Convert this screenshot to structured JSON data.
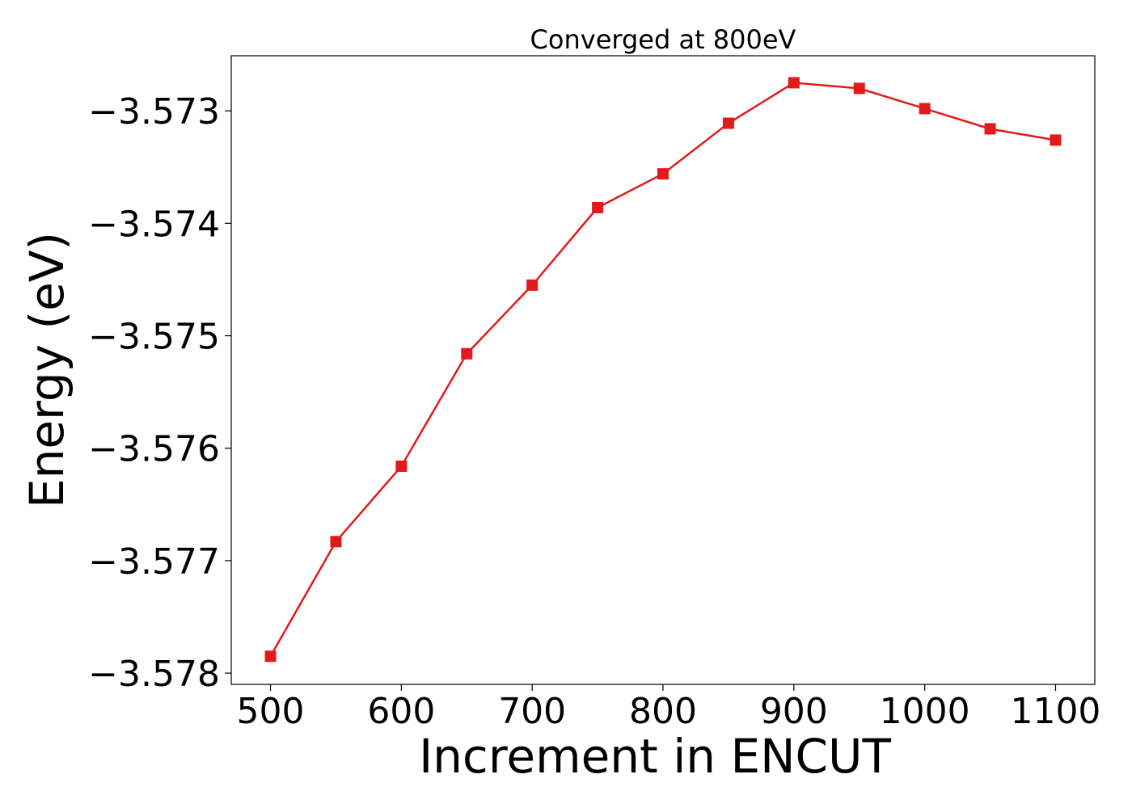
{
  "chart_data": {
    "type": "line",
    "title": "Converged at 800eV",
    "xlabel": "Increment in ENCUT",
    "ylabel": "Energy (eV)",
    "xlim": [
      470,
      1130
    ],
    "ylim": [
      -3.5781,
      -3.57251
    ],
    "x_ticks": [
      500,
      600,
      700,
      800,
      900,
      1000,
      1100
    ],
    "x_tick_labels": [
      "500",
      "600",
      "700",
      "800",
      "900",
      "1000",
      "1100"
    ],
    "y_ticks": [
      -3.578,
      -3.577,
      -3.576,
      -3.575,
      -3.574,
      -3.573
    ],
    "y_tick_labels": [
      "−3.578",
      "−3.577",
      "−3.576",
      "−3.575",
      "−3.574",
      "−3.573"
    ],
    "grid": false,
    "series": [
      {
        "color": "#e31a1c",
        "marker": "square",
        "x": [
          500,
          550,
          600,
          650,
          700,
          750,
          800,
          850,
          900,
          950,
          1000,
          1050,
          1100
        ],
        "y": [
          -3.57785,
          -3.57683,
          -3.57616,
          -3.57516,
          -3.57455,
          -3.57386,
          -3.57356,
          -3.57311,
          -3.57275,
          -3.5728,
          -3.57298,
          -3.57316,
          -3.57326
        ]
      }
    ]
  }
}
